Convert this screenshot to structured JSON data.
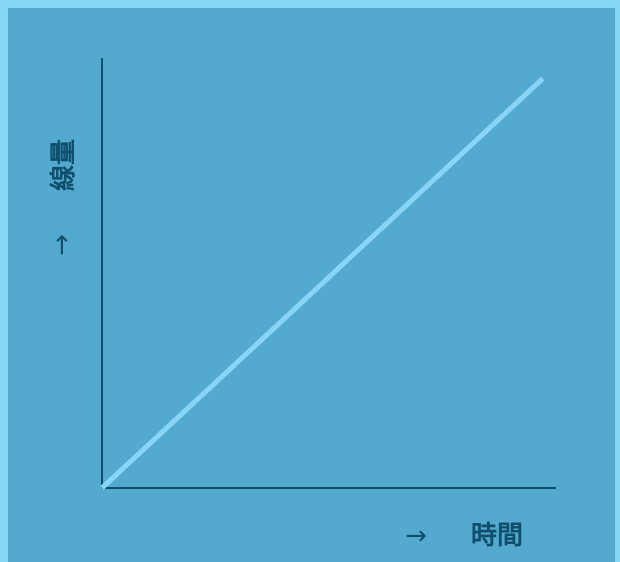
{
  "chart_data": {
    "type": "line",
    "title": "",
    "xlabel": "時間",
    "ylabel": "線量",
    "x_arrow": "→",
    "y_arrow": "→",
    "series": [
      {
        "x": [
          0,
          1
        ],
        "y": [
          0,
          1
        ]
      }
    ],
    "xlim": [
      0,
      1.03
    ],
    "ylim": [
      0,
      1.05
    ],
    "grid": false,
    "legend": "none",
    "colors": {
      "outer_border": "#87d5f7",
      "panel_bg": "#54a9ce",
      "axis": "#0f4f6d",
      "line": "#87d5f7",
      "label": "#0f4f6d"
    }
  }
}
